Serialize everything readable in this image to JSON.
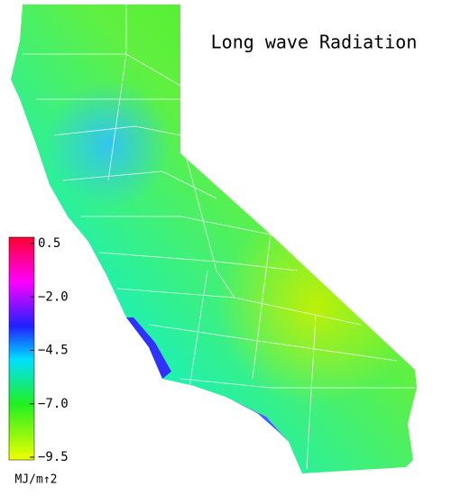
{
  "title": "Long wave Radiation",
  "colorbar": {
    "range": [
      -9.5,
      0.5
    ],
    "ticks": [
      {
        "value": -9.5,
        "label": "−9.5"
      },
      {
        "value": -7,
        "label": "−7.0"
      },
      {
        "value": -4.5,
        "label": "−4.5"
      },
      {
        "value": -2,
        "label": "−2.0"
      },
      0.5
    ],
    "unit": "MJ/m↑2"
  }
}
